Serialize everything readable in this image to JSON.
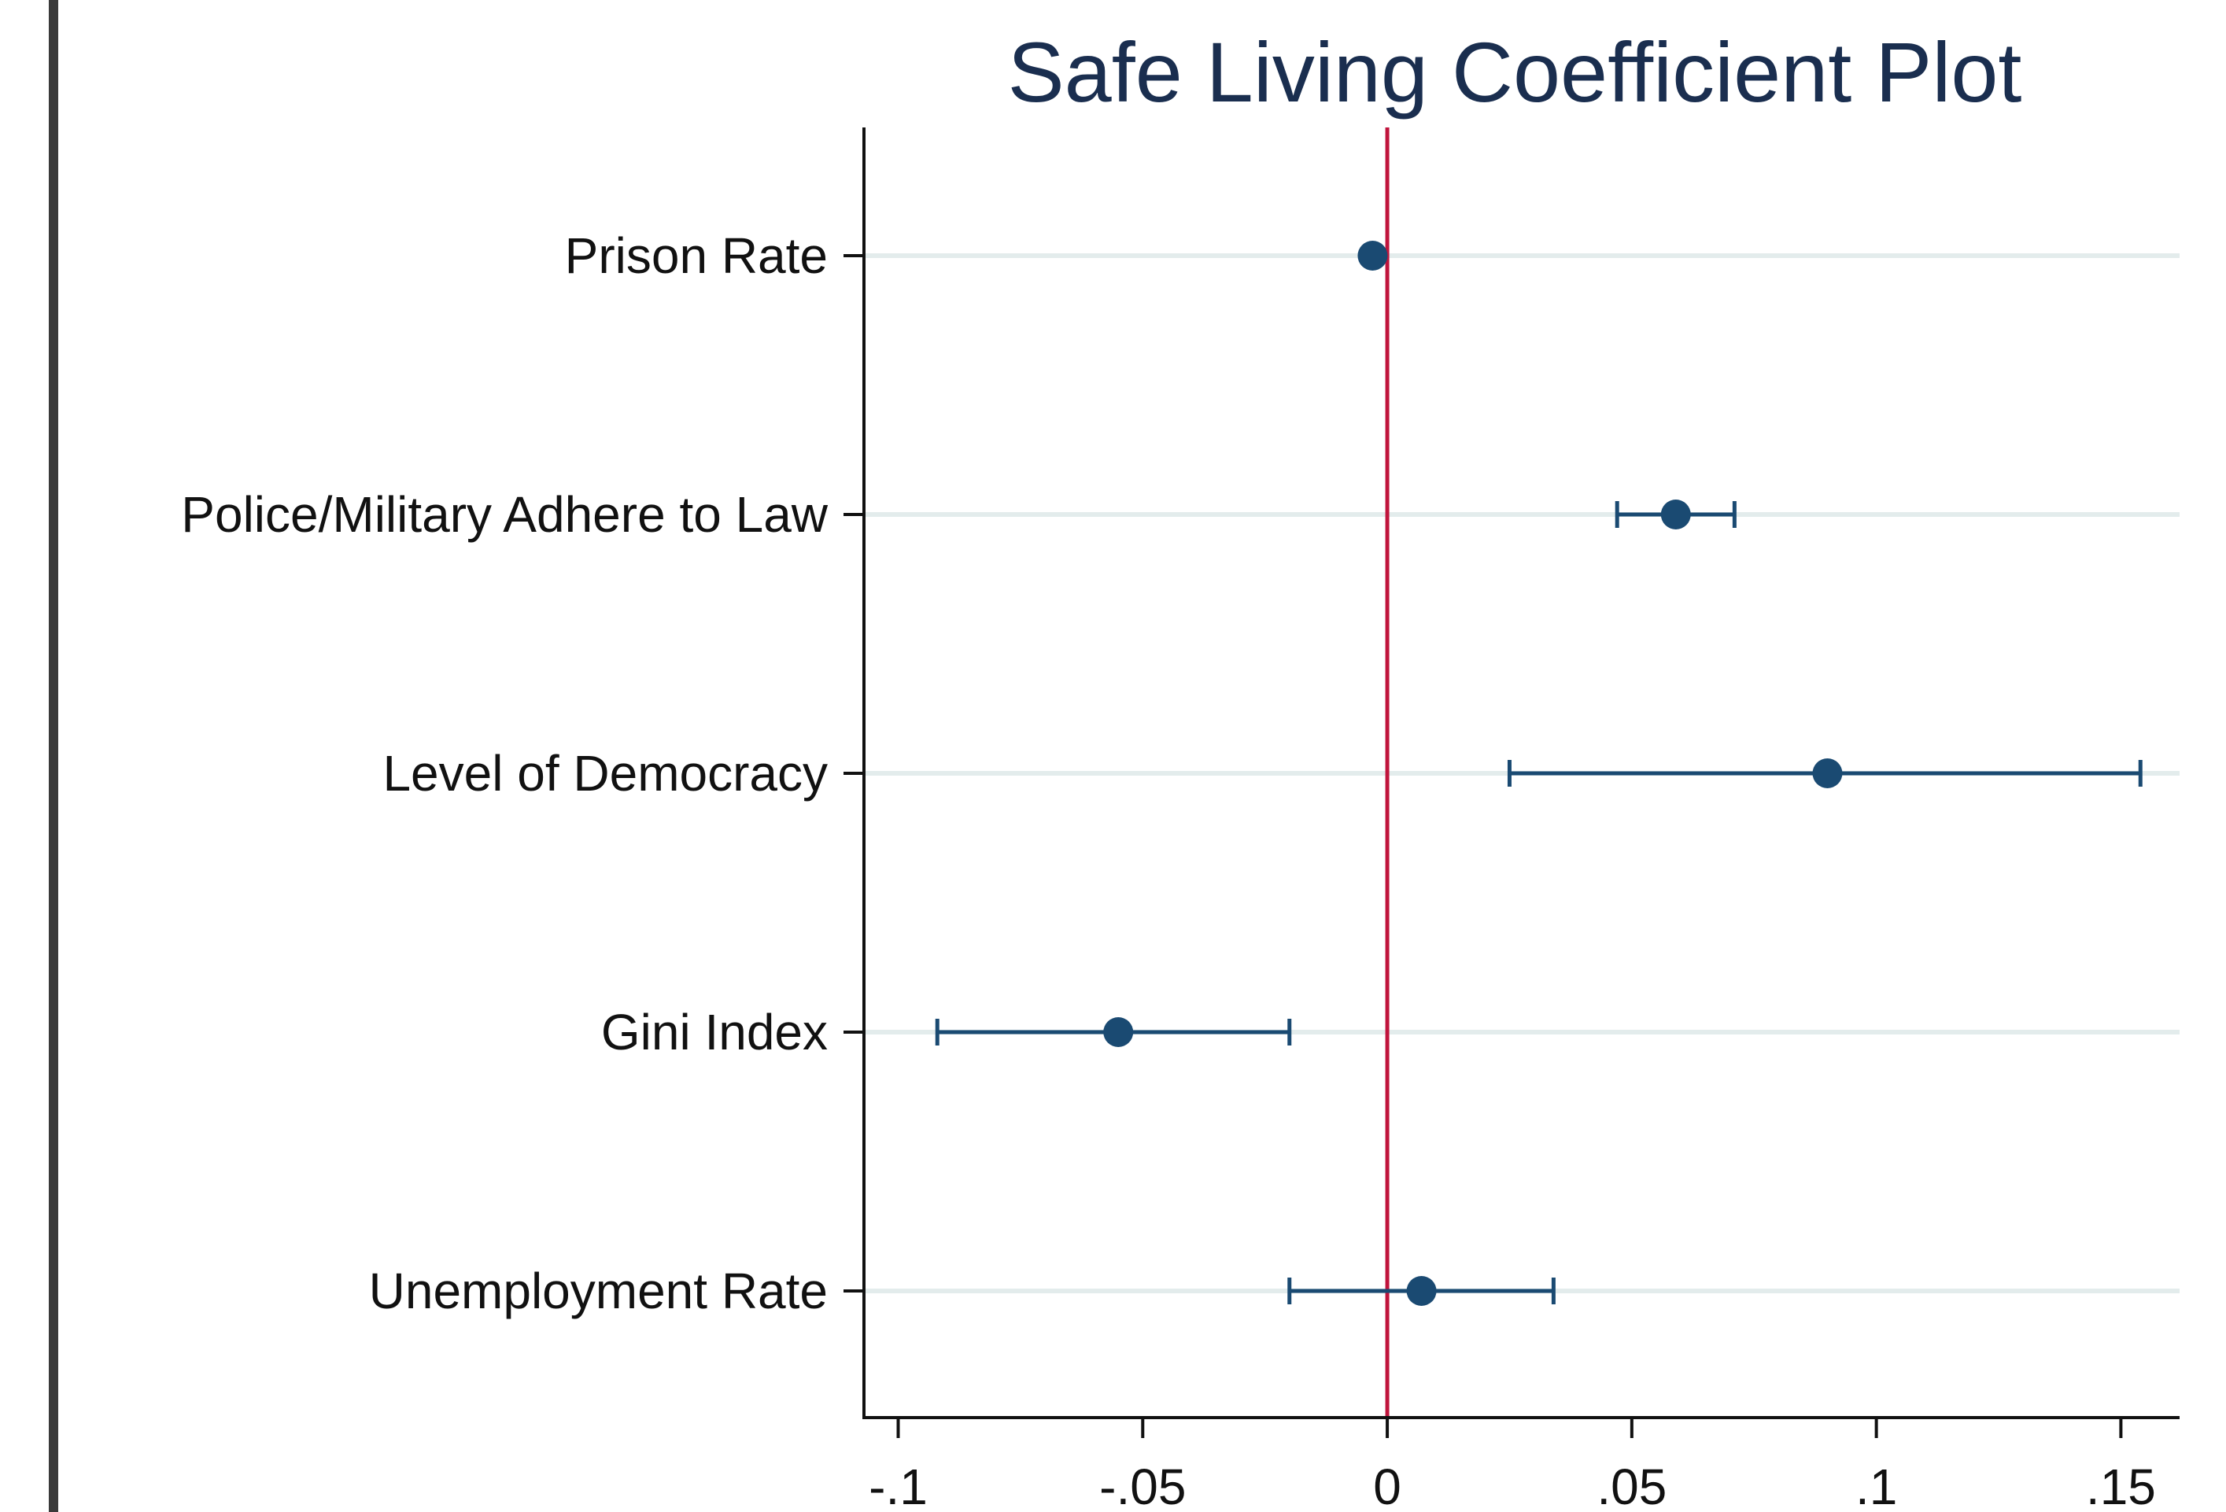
{
  "chart_data": {
    "type": "scatter",
    "subtype": "coefficient-plot",
    "title": "Safe Living Coefficient Plot",
    "xlabel": "",
    "ylabel": "",
    "xlim": [
      -0.107,
      0.162
    ],
    "x_ticks": [
      -0.1,
      -0.05,
      0,
      0.05,
      0.1,
      0.15
    ],
    "x_tick_labels": [
      "-.1",
      "-.05",
      "0",
      ".05",
      ".1",
      ".15"
    ],
    "categories": [
      "Prison Rate",
      "Police/Military Adhere to Law",
      "Level of Democracy",
      "Gini Index",
      "Unemployment Rate"
    ],
    "estimates": [
      -0.003,
      0.059,
      0.09,
      -0.055,
      0.007
    ],
    "ci_low": [
      -0.003,
      0.047,
      0.025,
      -0.092,
      -0.02
    ],
    "ci_high": [
      -0.003,
      0.071,
      0.154,
      -0.02,
      0.034
    ],
    "reference_line": 0,
    "grid": true,
    "legend": "none"
  },
  "colors": {
    "marker": "#1a4a72",
    "reference": "#c0143c",
    "grid": "#e3ecec",
    "axis": "#111111",
    "title": "#1a2e4f"
  }
}
